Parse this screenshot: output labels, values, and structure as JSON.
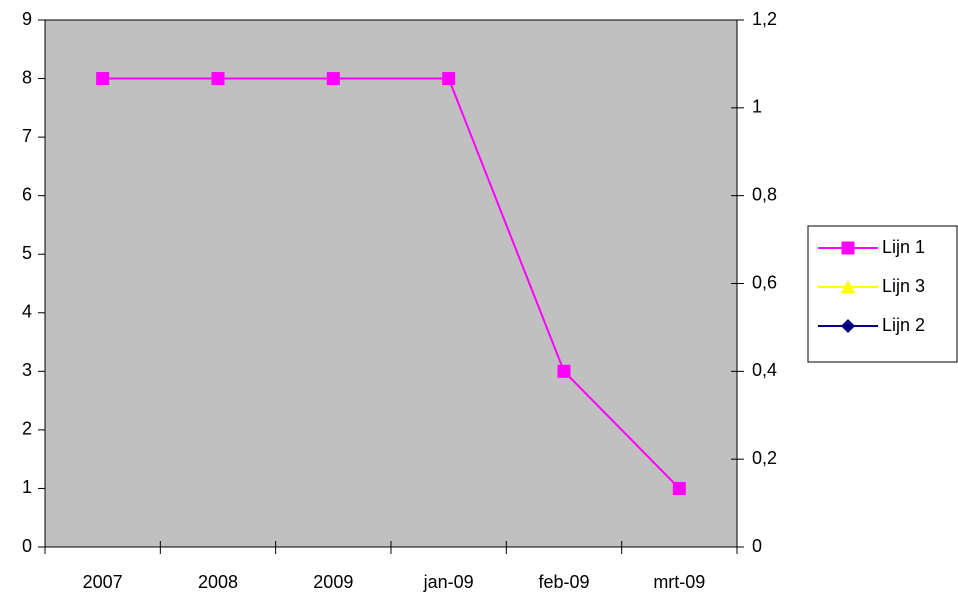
{
  "chart_data": {
    "type": "line",
    "categories": [
      "2007",
      "2008",
      "2009",
      "jan-09",
      "feb-09",
      "mrt-09"
    ],
    "series": [
      {
        "name": "Lijn 1",
        "color": "#ff00ff",
        "marker": "square",
        "values": [
          8,
          8,
          8,
          8,
          3,
          1
        ]
      },
      {
        "name": "Lijn 3",
        "color": "#ffff00",
        "marker": "triangle",
        "axis": "y2",
        "values": [
          null,
          null,
          null,
          null,
          null,
          null
        ]
      },
      {
        "name": "Lijn 2",
        "color": "#000080",
        "marker": "diamond",
        "axis": "y2",
        "values": [
          null,
          null,
          null,
          null,
          null,
          null
        ]
      }
    ],
    "ylim": [
      0,
      9
    ],
    "yticks": [
      0,
      1,
      2,
      3,
      4,
      5,
      6,
      7,
      8,
      9
    ],
    "y2lim": [
      0,
      1.2
    ],
    "y2ticks": [
      0,
      {
        "value": 0.2,
        "label": "0,2"
      },
      {
        "value": 0.4,
        "label": "0,4"
      },
      {
        "value": 0.6,
        "label": "0,6"
      },
      {
        "value": 0.8,
        "label": "0,8"
      },
      1,
      {
        "value": 1.2,
        "label": "1,2"
      }
    ],
    "plot_background": "#c0c0c0",
    "legend": "right"
  }
}
